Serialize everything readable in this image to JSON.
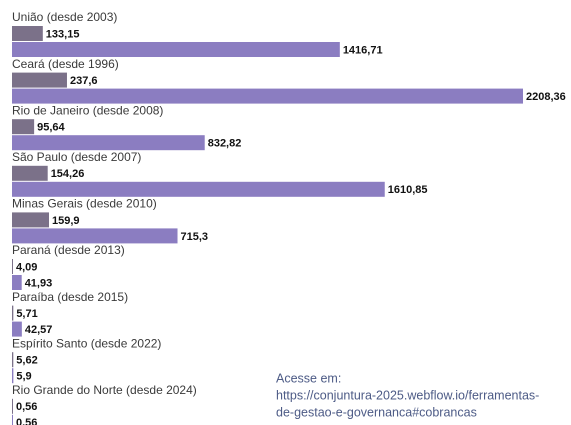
{
  "chart_data": {
    "type": "bar",
    "orientation": "horizontal",
    "categories": [
      "União (desde 2003)",
      "Ceará (desde 1996)",
      "Rio de Janeiro (desde 2008)",
      "São Paulo (desde 2007)",
      "Minas Gerais (desde 2010)",
      "Paraná (desde 2013)",
      "Paraíba (desde 2015)",
      "Espírito Santo (desde 2022)",
      "Rio Grande do Norte (desde 2024)"
    ],
    "series": [
      {
        "color": "#7b7189",
        "values": [
          133.15,
          237.6,
          95.64,
          154.26,
          159.9,
          4.09,
          5.71,
          5.62,
          0.56
        ],
        "value_labels": [
          "133,15",
          "237,6",
          "95,64",
          "154,26",
          "159,9",
          "4,09",
          "5,71",
          "5,62",
          "0,56"
        ]
      },
      {
        "color": "#8b7dc1",
        "values": [
          1416.71,
          2208.36,
          832.82,
          1610.85,
          715.3,
          41.93,
          42.57,
          5.9,
          0.56
        ],
        "value_labels": [
          "1416,71",
          "2208,36",
          "832,82",
          "1610,85",
          "715,3",
          "41,93",
          "42,57",
          "5,9",
          "0,56"
        ]
      }
    ],
    "annotation": [
      "Acesse em:",
      "https://conjuntura-2025.webflow.io/ferramentas-",
      "de-gestao-e-governanca#cobrancas"
    ]
  }
}
